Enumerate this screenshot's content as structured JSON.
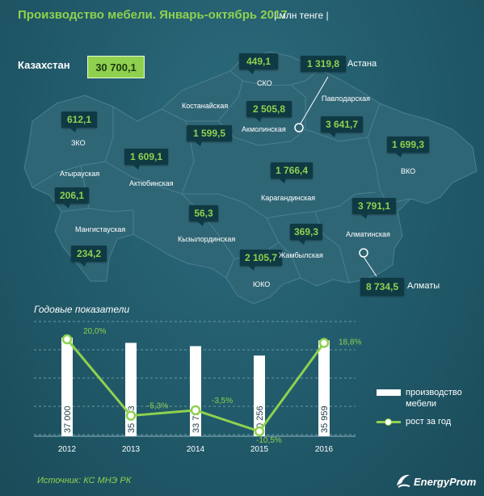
{
  "header": {
    "title": "Производство мебели. Январь-октябрь 2017",
    "subtitle": "| млн тенге |"
  },
  "total": {
    "label": "Казахстан",
    "value": "30 700,1"
  },
  "regions": [
    {
      "name": "СКО",
      "value": "449,1"
    },
    {
      "name": "Астана",
      "value": "1 319,8"
    },
    {
      "name": "Костанайская",
      "value": "1 599,5"
    },
    {
      "name": "Акмолинская",
      "value": "2 505,8"
    },
    {
      "name": "Павлодарская",
      "value": "3 641,7"
    },
    {
      "name": "ЗКО",
      "value": "612,1"
    },
    {
      "name": "ВКО",
      "value": "1 699,3"
    },
    {
      "name": "Актюбинская",
      "value": "1 609,1"
    },
    {
      "name": "Атырауская",
      "value": "206,1"
    },
    {
      "name": "Карагандинская",
      "value": "1 766,4"
    },
    {
      "name": "Кызылординская",
      "value": "56,3"
    },
    {
      "name": "Алматинская",
      "value": "3 791,1"
    },
    {
      "name": "Мангистауская",
      "value": "234,2"
    },
    {
      "name": "Жамбылская",
      "value": "369,3"
    },
    {
      "name": "ЮКО",
      "value": "2 105,7"
    },
    {
      "name": "Алматы",
      "value": "8 734,5"
    }
  ],
  "chart_data": {
    "title": "Годовые показатели",
    "type": "bar",
    "categories": [
      "2012",
      "2013",
      "2014",
      "2015",
      "2016"
    ],
    "series": [
      {
        "name": "производство мебели",
        "type": "bar",
        "values": [
          37000,
          35023,
          33796,
          30256,
          35959
        ],
        "labels": [
          "37 000",
          "35 023",
          "33 796",
          "30 256",
          "35 959"
        ]
      },
      {
        "name": "рост за год",
        "type": "line",
        "values": [
          20.0,
          -5.3,
          -3.5,
          -10.5,
          18.8
        ],
        "labels": [
          "20,0%",
          "-5,3%",
          "-3,5%",
          "-10,5%",
          "18,8%"
        ]
      }
    ],
    "legend": "right",
    "grid": true
  },
  "colors": {
    "accent": "#8fd14f",
    "bar": "#ffffff",
    "box": "#0f3a44",
    "map": "#2f6676"
  },
  "footer": {
    "source": "Источник: КС МНЭ РК",
    "brand": "EnergyProm"
  }
}
